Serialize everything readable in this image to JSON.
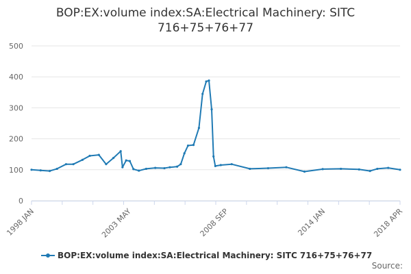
{
  "chart_data": {
    "type": "line",
    "title": "BOP:EX:volume index:SA:Electrical Machinery: SITC 716+75+76+77",
    "xlabel": "",
    "ylabel": "",
    "ylim": [
      0,
      500
    ],
    "yticks": [
      0,
      100,
      200,
      300,
      400,
      500
    ],
    "xticks": [
      "1998 JAN",
      "2003 MAY",
      "2008 SEP",
      "2014 JAN",
      "2018 APR"
    ],
    "xrange": [
      "1998 JAN",
      "2018 APR"
    ],
    "grid": true,
    "legend_position": "bottom",
    "series": [
      {
        "name": "BOP:EX:volume index:SA:Electrical Machinery: SITC 716+75+76+77",
        "color": "#1f7ab4",
        "x": [
          1998.0,
          1998.5,
          1999.0,
          1999.4,
          1999.9,
          2000.3,
          2000.8,
          2001.2,
          2001.7,
          2002.1,
          2002.5,
          2002.9,
          2003.0,
          2003.2,
          2003.4,
          2003.6,
          2003.9,
          2004.3,
          2004.8,
          2005.3,
          2005.6,
          2006.0,
          2006.2,
          2006.4,
          2006.6,
          2006.9,
          2007.2,
          2007.4,
          2007.6,
          2007.75,
          2007.9,
          2008.0,
          2008.1,
          2008.4,
          2009.0,
          2010.0,
          2011.0,
          2012.0,
          2013.0,
          2014.0,
          2015.0,
          2016.0,
          2016.6,
          2017.0,
          2017.6,
          2018.25
        ],
        "values": [
          100,
          98,
          96,
          103,
          118,
          118,
          132,
          145,
          148,
          118,
          138,
          160,
          108,
          130,
          128,
          102,
          97,
          103,
          106,
          105,
          108,
          110,
          118,
          153,
          178,
          180,
          235,
          345,
          385,
          388,
          295,
          143,
          112,
          115,
          118,
          103,
          105,
          108,
          94,
          102,
          103,
          101,
          96,
          103,
          106,
          100
        ]
      }
    ]
  },
  "footer": {
    "source_label": "Source:"
  }
}
